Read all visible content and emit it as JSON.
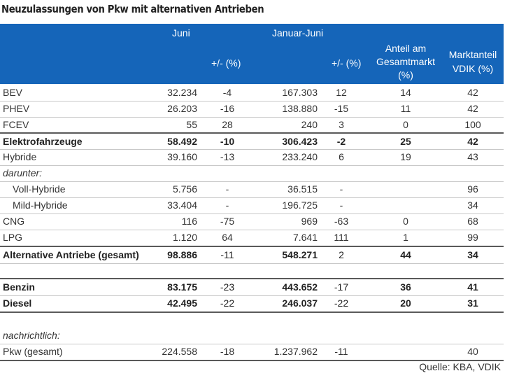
{
  "title": "Neuzulassungen von Pkw mit alternativen Antrieben",
  "header": {
    "juni": "Juni",
    "januar_juni": "Januar-Juni",
    "change1": "+/- (%)",
    "change2": "+/- (%)",
    "anteil_line1": "Anteil am",
    "anteil_line2": "Gesamtmarkt",
    "anteil_line3": "(%)",
    "markt_line1": "Marktanteil",
    "markt_line2": "VDIK (%)"
  },
  "rows": [
    {
      "label": "BEV",
      "juni": "32.234",
      "chg1": "-4",
      "jj": "167.303",
      "chg2": "12",
      "anteil": "14",
      "vdik": "42"
    },
    {
      "label": "PHEV",
      "juni": "26.203",
      "chg1": "-16",
      "jj": "138.880",
      "chg2": "-15",
      "anteil": "11",
      "vdik": "42"
    },
    {
      "label": "FCEV",
      "juni": "55",
      "chg1": "28",
      "jj": "240",
      "chg2": "3",
      "anteil": "0",
      "vdik": "100"
    },
    {
      "label": "Elektrofahrzeuge",
      "juni": "58.492",
      "chg1": "-10",
      "jj": "306.423",
      "chg2": "-2",
      "anteil": "25",
      "vdik": "42"
    },
    {
      "label": "Hybride",
      "juni": "39.160",
      "chg1": "-13",
      "jj": "233.240",
      "chg2": "6",
      "anteil": "19",
      "vdik": "43"
    },
    {
      "label": "darunter:"
    },
    {
      "label": "Voll-Hybride",
      "juni": "5.756",
      "chg1": "-",
      "jj": "36.515",
      "chg2": "-",
      "anteil": "",
      "vdik": "96"
    },
    {
      "label": "Mild-Hybride",
      "juni": "33.404",
      "chg1": "-",
      "jj": "196.725",
      "chg2": "-",
      "anteil": "",
      "vdik": "34"
    },
    {
      "label": "CNG",
      "juni": "116",
      "chg1": "-75",
      "jj": "969",
      "chg2": "-63",
      "anteil": "0",
      "vdik": "68"
    },
    {
      "label": "LPG",
      "juni": "1.120",
      "chg1": "64",
      "jj": "7.641",
      "chg2": "111",
      "anteil": "1",
      "vdik": "99"
    },
    {
      "label": "Alternative Antriebe (gesamt)",
      "juni": "98.886",
      "chg1": "-11",
      "jj": "548.271",
      "chg2": "2",
      "anteil": "44",
      "vdik": "34"
    },
    {
      "label": "Benzin",
      "juni": "83.175",
      "chg1": "-23",
      "jj": "443.652",
      "chg2": "-17",
      "anteil": "36",
      "vdik": "41"
    },
    {
      "label": "Diesel",
      "juni": "42.495",
      "chg1": "-22",
      "jj": "246.037",
      "chg2": "-22",
      "anteil": "20",
      "vdik": "31"
    },
    {
      "label": "nachrichtlich:"
    },
    {
      "label": "Pkw (gesamt)",
      "juni": "224.558",
      "chg1": "-18",
      "jj": "1.237.962",
      "chg2": "-11",
      "anteil": "",
      "vdik": "40"
    }
  ],
  "source": "Quelle: KBA, VDIK"
}
